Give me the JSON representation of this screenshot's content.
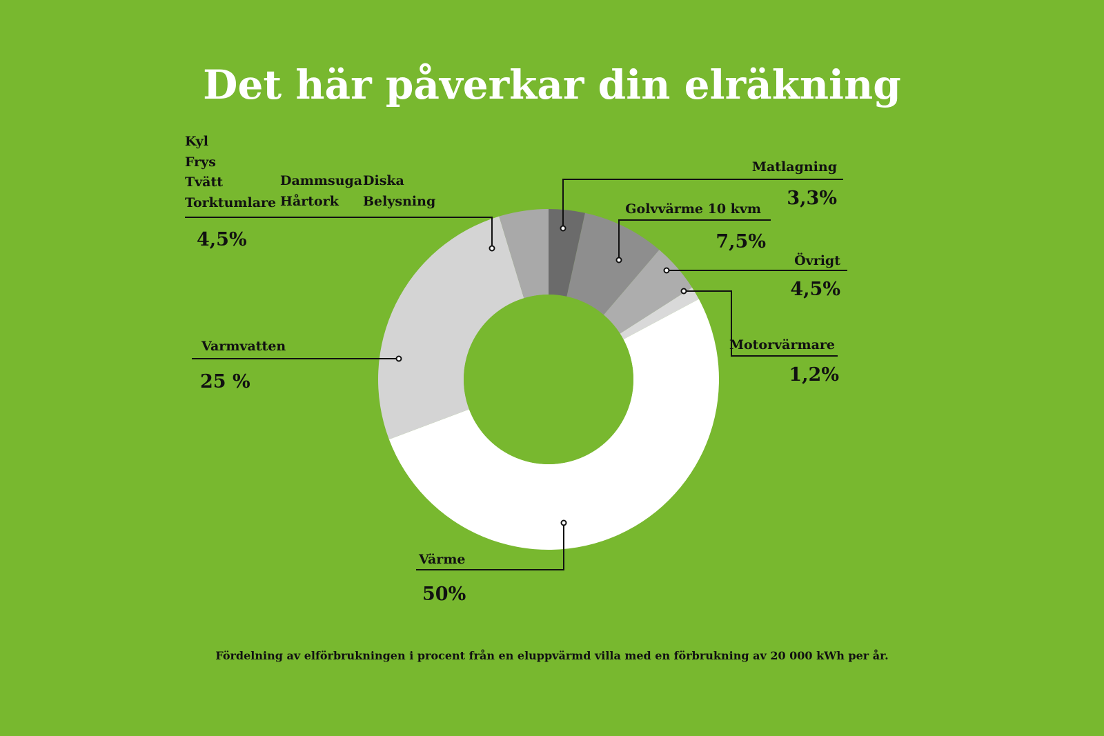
{
  "chart_data": {
    "type": "pie",
    "variant": "donut",
    "title": "Det här påverkar din elräkning",
    "footnote": "Fördelning av elförbrukningen i procent från en eluppvärmd villa med  en förbrukning av 20 000 kWh per år.",
    "slices": [
      {
        "label_lines": [
          "Matlagning"
        ],
        "value": 3.3,
        "value_label": "3,3%",
        "color": "#6b6b6b"
      },
      {
        "label_lines": [
          "Golvvärme 10 kvm"
        ],
        "value": 7.5,
        "value_label": "7,5%",
        "color": "#8e8e8e"
      },
      {
        "label_lines": [
          "Övrigt"
        ],
        "value": 4.5,
        "value_label": "4,5%",
        "color": "#adadad"
      },
      {
        "label_lines": [
          "Motorvärmare"
        ],
        "value": 1.2,
        "value_label": "1,2%",
        "color": "#d9d9d9"
      },
      {
        "label_lines": [
          "Värme"
        ],
        "value": 50,
        "value_label": "50%",
        "color": "#ffffff"
      },
      {
        "label_lines": [
          "Varmvatten"
        ],
        "value": 25,
        "value_label": "25 %",
        "color": "#d4d4d4"
      },
      {
        "label_lines": [
          "Kyl",
          "Frys",
          "Tvätt",
          "Torktumlare",
          "Dammsuga",
          "Hårtork",
          "Diska",
          "Belysning"
        ],
        "value": 4.5,
        "value_label": "4,5%",
        "color": "#a9a9a9"
      }
    ]
  }
}
